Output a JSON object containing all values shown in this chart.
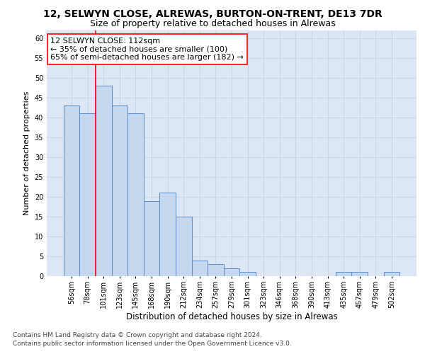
{
  "title1": "12, SELWYN CLOSE, ALREWAS, BURTON-ON-TRENT, DE13 7DR",
  "title2": "Size of property relative to detached houses in Alrewas",
  "xlabel": "Distribution of detached houses by size in Alrewas",
  "ylabel": "Number of detached properties",
  "categories": [
    "56sqm",
    "78sqm",
    "101sqm",
    "123sqm",
    "145sqm",
    "168sqm",
    "190sqm",
    "212sqm",
    "234sqm",
    "257sqm",
    "279sqm",
    "301sqm",
    "323sqm",
    "346sqm",
    "368sqm",
    "390sqm",
    "413sqm",
    "435sqm",
    "457sqm",
    "479sqm",
    "502sqm"
  ],
  "values": [
    43,
    41,
    48,
    43,
    41,
    19,
    21,
    15,
    4,
    3,
    2,
    1,
    0,
    0,
    0,
    0,
    0,
    1,
    1,
    0,
    1
  ],
  "bar_color": "#c5d8ee",
  "bar_edge_color": "#5b8cc8",
  "grid_color": "#c8d4e8",
  "bg_color": "#dce6f5",
  "annotation_text": "12 SELWYN CLOSE: 112sqm\n← 35% of detached houses are smaller (100)\n65% of semi-detached houses are larger (182) →",
  "annotation_box_color": "white",
  "annotation_box_edge_color": "red",
  "vline_color": "red",
  "vline_x_index": 2,
  "ylim": [
    0,
    62
  ],
  "yticks": [
    0,
    5,
    10,
    15,
    20,
    25,
    30,
    35,
    40,
    45,
    50,
    55,
    60
  ],
  "footnote1": "Contains HM Land Registry data © Crown copyright and database right 2024.",
  "footnote2": "Contains public sector information licensed under the Open Government Licence v3.0.",
  "title1_fontsize": 10,
  "title2_fontsize": 9,
  "xlabel_fontsize": 8.5,
  "ylabel_fontsize": 8,
  "tick_fontsize": 7,
  "annotation_fontsize": 8,
  "footnote_fontsize": 6.5
}
